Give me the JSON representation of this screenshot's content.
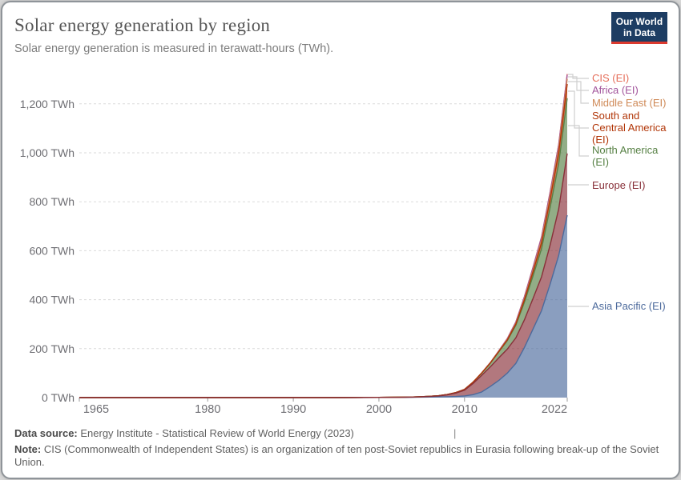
{
  "header": {
    "title": "Solar energy generation by region",
    "subtitle": "Solar energy generation is measured in terawatt-hours (TWh).",
    "logo_line1": "Our World",
    "logo_line2": "in Data",
    "logo_bg": "#1d3d63",
    "logo_accent": "#dc3a2f"
  },
  "footer": {
    "datasource_label": "Data source:",
    "datasource_text": " Energy Institute - Statistical Review of World Energy (2023)",
    "divider": "|",
    "note_label": "Note:",
    "note_text": " CIS (Commonwealth of Independent States) is an organization of ten post-Soviet republics in Eurasia following break-up of the Soviet Union."
  },
  "legend": {
    "items": [
      {
        "label": "CIS (EI)",
        "color": "#E56E5A"
      },
      {
        "label": "Africa (EI)",
        "color": "#A2559C"
      },
      {
        "label": "Middle East (EI)",
        "color": "#CF8A58"
      },
      {
        "label": "South and\nCentral America\n(EI)",
        "color": "#B13507"
      },
      {
        "label": "North America\n(EI)",
        "color": "#578145"
      },
      {
        "label": "Europe (EI)",
        "color": "#883039"
      },
      {
        "label": "Asia Pacific (EI)",
        "color": "#4C6A9C"
      }
    ]
  },
  "chart_data": {
    "type": "area",
    "stacked": true,
    "title": "Solar energy generation by region",
    "unit": "TWh",
    "xlabel": "",
    "ylabel": "",
    "xlim": [
      1965,
      2022
    ],
    "ylim": [
      0,
      1300
    ],
    "grid": "dashed-horizontal",
    "legend_position": "right-edge-labels",
    "x": [
      1965,
      1970,
      1975,
      1980,
      1985,
      1990,
      1995,
      2000,
      2002,
      2004,
      2005,
      2006,
      2007,
      2008,
      2009,
      2010,
      2011,
      2012,
      2013,
      2014,
      2015,
      2016,
      2017,
      2018,
      2019,
      2020,
      2021,
      2022
    ],
    "series": [
      {
        "name": "Asia Pacific (EI)",
        "color": "#4C6A9C",
        "values": [
          0,
          0,
          0,
          0,
          0,
          0,
          0,
          0.5,
          0.8,
          1.2,
          1.8,
          2.2,
          2.8,
          3.5,
          4.5,
          7,
          12,
          23,
          45,
          70,
          100,
          140,
          205,
          280,
          355,
          463,
          580,
          745
        ]
      },
      {
        "name": "Europe (EI)",
        "color": "#883039",
        "values": [
          0,
          0,
          0,
          0,
          0,
          0,
          0,
          0.1,
          0.3,
          0.7,
          1.5,
          2.5,
          4,
          7.5,
          14,
          23,
          46,
          68,
          80,
          92,
          98,
          104,
          113,
          125,
          138,
          160,
          190,
          252
        ]
      },
      {
        "name": "North America (EI)",
        "color": "#578145",
        "values": [
          0,
          0,
          0,
          0,
          0,
          0,
          0,
          0.5,
          0.55,
          0.6,
          0.6,
          0.7,
          1,
          1.6,
          2.2,
          3.3,
          5,
          9,
          15,
          25,
          35,
          52,
          72,
          92,
          115,
          153,
          185,
          226
        ]
      },
      {
        "name": "South and Central America (EI)",
        "color": "#B13507",
        "values": [
          0,
          0,
          0,
          0,
          0,
          0,
          0,
          0,
          0,
          0,
          0,
          0,
          0,
          0,
          0,
          0,
          0,
          0.2,
          0.5,
          1,
          2.5,
          5,
          10,
          17,
          24,
          33,
          44,
          58
        ]
      },
      {
        "name": "Middle East (EI)",
        "color": "#CF8A58",
        "values": [
          0,
          0,
          0,
          0,
          0,
          0,
          0,
          0,
          0,
          0,
          0,
          0,
          0,
          0,
          0,
          0,
          0.1,
          0.3,
          0.6,
          1,
          2,
          3,
          5,
          8,
          11,
          15,
          17,
          21
        ]
      },
      {
        "name": "Africa (EI)",
        "color": "#A2559C",
        "values": [
          0,
          0,
          0,
          0,
          0,
          0,
          0,
          0,
          0,
          0,
          0,
          0,
          0,
          0,
          0,
          0.2,
          0.3,
          0.5,
          1,
          2,
          3.5,
          5,
          7.5,
          10,
          12,
          14,
          15,
          17
        ]
      },
      {
        "name": "CIS (EI)",
        "color": "#E56E5A",
        "values": [
          0,
          0,
          0,
          0,
          0,
          0,
          0,
          0,
          0,
          0,
          0,
          0,
          0,
          0,
          0,
          0,
          0,
          0,
          0,
          0,
          0.1,
          0.2,
          0.5,
          1,
          1.5,
          2,
          2.5,
          3
        ]
      }
    ],
    "yticks": [
      0,
      200,
      400,
      600,
      800,
      1000,
      1200
    ],
    "ytick_labels": [
      "0 TWh",
      "200 TWh",
      "400 TWh",
      "600 TWh",
      "800 TWh",
      "1,000 TWh",
      "1,200 TWh"
    ],
    "xticks": [
      1965,
      1980,
      1990,
      2000,
      2010,
      2022
    ],
    "xtick_labels": [
      "1965",
      "1980",
      "1990",
      "2000",
      "2010",
      "2022"
    ]
  }
}
